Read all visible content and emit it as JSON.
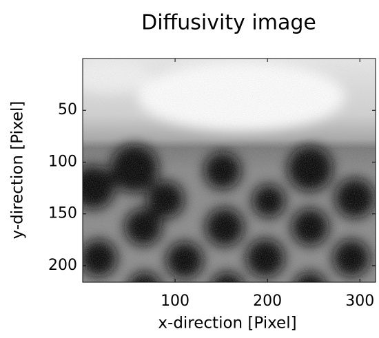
{
  "chart_data": {
    "type": "image",
    "title": "Diffusivity image",
    "x_label": "x-direction [Pixel]",
    "y_label": "y-direction [Pixel]",
    "xlim": [
      0,
      317
    ],
    "xticks": [
      100,
      200,
      300
    ],
    "ylim": [
      0,
      216
    ],
    "yticks": [
      50,
      100,
      150,
      200
    ],
    "y_reversed": true,
    "colormap": "gray"
  }
}
